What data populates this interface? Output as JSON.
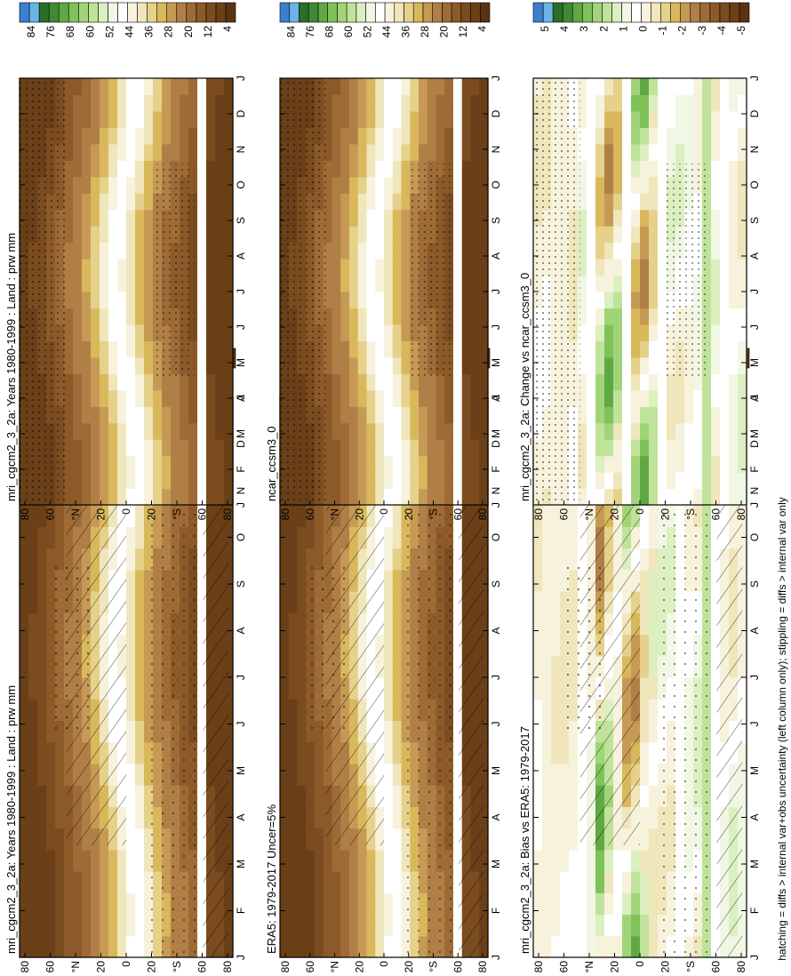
{
  "footer_note": "hatching = diffs > internal var+obs uncertainty (left column only); stippling = diffs > internal var only",
  "colors": {
    "abs_scale": [
      "#5a3311",
      "#6b4018",
      "#7b4c1f",
      "#8c5a29",
      "#9e6b36",
      "#b07f46",
      "#c69a55",
      "#d9b85c",
      "#e6d18b",
      "#f0e6bb",
      "#f7f2dc",
      "#ffffff",
      "#f0f7e4",
      "#dcefc0",
      "#bfe39a",
      "#a1d478",
      "#80c25a",
      "#5fa844",
      "#3f8a34",
      "#2a6e28",
      "#6bb4e8",
      "#3a7fd1"
    ],
    "diff_scale": [
      "#5a3311",
      "#6b4018",
      "#7b4c1f",
      "#8c5a29",
      "#9e6b36",
      "#b07f46",
      "#c69a55",
      "#d9b85c",
      "#e6d18b",
      "#f0e6bb",
      "#f7f2dc",
      "#ffffff",
      "#f0f7e4",
      "#dcefc0",
      "#bfe39a",
      "#a1d478",
      "#80c25a",
      "#5fa844",
      "#3f8a34",
      "#2a6e28",
      "#6bb4e8",
      "#3a7fd1"
    ]
  },
  "chart_data": [
    {
      "type": "heatmap",
      "title": "mri_cgcm2_3_2a: Years 1980-1999 : Land : prw mm",
      "x_ticks": [
        "J",
        "F",
        "M",
        "A",
        "M",
        "J",
        "J",
        "A",
        "S",
        "O",
        "N",
        "D",
        "J"
      ],
      "y_ticks": [
        "80",
        "60",
        "°N",
        "20",
        "0",
        "20",
        "°S",
        "60",
        "80"
      ],
      "colorbar_ticks": [
        "84",
        "76",
        "68",
        "60",
        "52",
        "44",
        "36",
        "28",
        "20",
        "12",
        "4"
      ],
      "kind": "abs",
      "hatched": true,
      "stipple": "moderate"
    },
    {
      "type": "heatmap",
      "title": "mri_cgcm2_3_2a: Years 1980-1999 : Land : prw mm",
      "x_ticks": [
        "J",
        "F",
        "M",
        "A",
        "M",
        "J",
        "J",
        "A",
        "S",
        "O",
        "N",
        "D",
        "J"
      ],
      "y_ticks": [
        "80",
        "60",
        "°N",
        "20",
        "0",
        "20",
        "°S",
        "60",
        "80"
      ],
      "colorbar_ticks": [
        "84",
        "76",
        "68",
        "60",
        "52",
        "44",
        "36",
        "28",
        "20",
        "12",
        "4"
      ],
      "kind": "abs",
      "hatched": false,
      "stipple": "dense"
    },
    {
      "type": "heatmap",
      "title": "ERA5: 1979-2017 Uncer=5%",
      "x_ticks": [
        "J",
        "F",
        "M",
        "A",
        "M",
        "J",
        "J",
        "A",
        "S",
        "O",
        "N",
        "D",
        "J"
      ],
      "y_ticks": [
        "80",
        "60",
        "°N",
        "20",
        "0",
        "20",
        "°S",
        "60",
        "80"
      ],
      "colorbar_ticks": [
        "84",
        "76",
        "68",
        "60",
        "52",
        "44",
        "36",
        "28",
        "20",
        "12",
        "4"
      ],
      "kind": "abs",
      "hatched": true,
      "stipple": "moderate"
    },
    {
      "type": "heatmap",
      "title": "ncar_ccsm3_0",
      "x_ticks": [
        "J",
        "F",
        "M",
        "A",
        "M",
        "J",
        "J",
        "A",
        "S",
        "O",
        "N",
        "D",
        "J"
      ],
      "y_ticks": [
        "80",
        "60",
        "°N",
        "20",
        "0",
        "20",
        "°S",
        "60",
        "80"
      ],
      "colorbar_ticks": [
        "84",
        "76",
        "68",
        "60",
        "52",
        "44",
        "36",
        "28",
        "20",
        "12",
        "4"
      ],
      "kind": "abs",
      "hatched": false,
      "stipple": "dense"
    },
    {
      "type": "heatmap",
      "title": "mri_cgcm2_3_2a: Bias vs ERA5: 1979-2017",
      "x_ticks": [
        "J",
        "F",
        "M",
        "A",
        "M",
        "J",
        "J",
        "A",
        "S",
        "O",
        "N",
        "D",
        "J"
      ],
      "y_ticks": [
        "80",
        "60",
        "°N",
        "20",
        "0",
        "20",
        "°S",
        "60",
        "80"
      ],
      "colorbar_ticks": [
        "5",
        "4",
        "3",
        "2",
        "1",
        "0",
        "-1",
        "-2",
        "-3",
        "-4",
        "-5"
      ],
      "kind": "diff",
      "hatched": true,
      "stipple": "moderate"
    },
    {
      "type": "heatmap",
      "title": "mri_cgcm2_3_2a: Change vs ncar_ccsm3_0",
      "x_ticks": [
        "J",
        "F",
        "M",
        "A",
        "M",
        "J",
        "J",
        "A",
        "S",
        "O",
        "N",
        "D",
        "J"
      ],
      "y_ticks": [
        "80",
        "60",
        "°N",
        "20",
        "0",
        "20",
        "°S",
        "60",
        "80"
      ],
      "colorbar_ticks": [
        "5",
        "4",
        "3",
        "2",
        "1",
        "0",
        "-1",
        "-2",
        "-3",
        "-4",
        "-5"
      ],
      "kind": "diff",
      "hatched": false,
      "stipple": "dense"
    }
  ]
}
